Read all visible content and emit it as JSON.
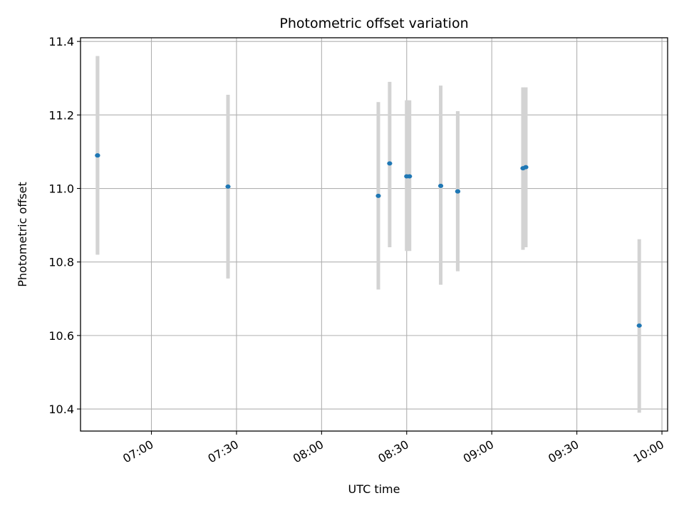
{
  "chart_data": {
    "type": "scatter",
    "title": "Photometric offset variation",
    "xlabel": "UTC time",
    "ylabel": "Photometric offset",
    "x_ticks": [
      "07:00",
      "07:30",
      "08:00",
      "08:30",
      "09:00",
      "09:30",
      "10:00"
    ],
    "y_ticks": [
      "10.4",
      "10.6",
      "10.8",
      "11.0",
      "11.2",
      "11.4"
    ],
    "xlim": [
      "06:35",
      "10:02"
    ],
    "ylim": [
      10.34,
      11.41
    ],
    "grid": true,
    "marker_color": "#1f77b4",
    "errorbar_color": "#d3d3d3",
    "points": [
      {
        "x": "06:41",
        "y": 11.09,
        "ylow": 10.82,
        "yhigh": 11.36
      },
      {
        "x": "06:41",
        "y": 11.09,
        "ylow": 10.82,
        "yhigh": 11.36
      },
      {
        "x": "07:27",
        "y": 11.005,
        "ylow": 10.755,
        "yhigh": 11.255
      },
      {
        "x": "08:20",
        "y": 10.98,
        "ylow": 10.725,
        "yhigh": 11.235
      },
      {
        "x": "08:24",
        "y": 11.068,
        "ylow": 10.84,
        "yhigh": 11.29
      },
      {
        "x": "08:30",
        "y": 11.033,
        "ylow": 10.83,
        "yhigh": 11.24
      },
      {
        "x": "08:31",
        "y": 11.033,
        "ylow": 10.83,
        "yhigh": 11.24
      },
      {
        "x": "08:42",
        "y": 11.007,
        "ylow": 10.738,
        "yhigh": 11.28
      },
      {
        "x": "08:48",
        "y": 10.992,
        "ylow": 10.775,
        "yhigh": 11.21
      },
      {
        "x": "08:48",
        "y": 10.992,
        "ylow": 10.775,
        "yhigh": 11.21
      },
      {
        "x": "09:11",
        "y": 11.055,
        "ylow": 10.833,
        "yhigh": 11.275
      },
      {
        "x": "09:12",
        "y": 11.058,
        "ylow": 10.84,
        "yhigh": 11.275
      },
      {
        "x": "09:52",
        "y": 10.627,
        "ylow": 10.39,
        "yhigh": 10.862
      }
    ]
  }
}
